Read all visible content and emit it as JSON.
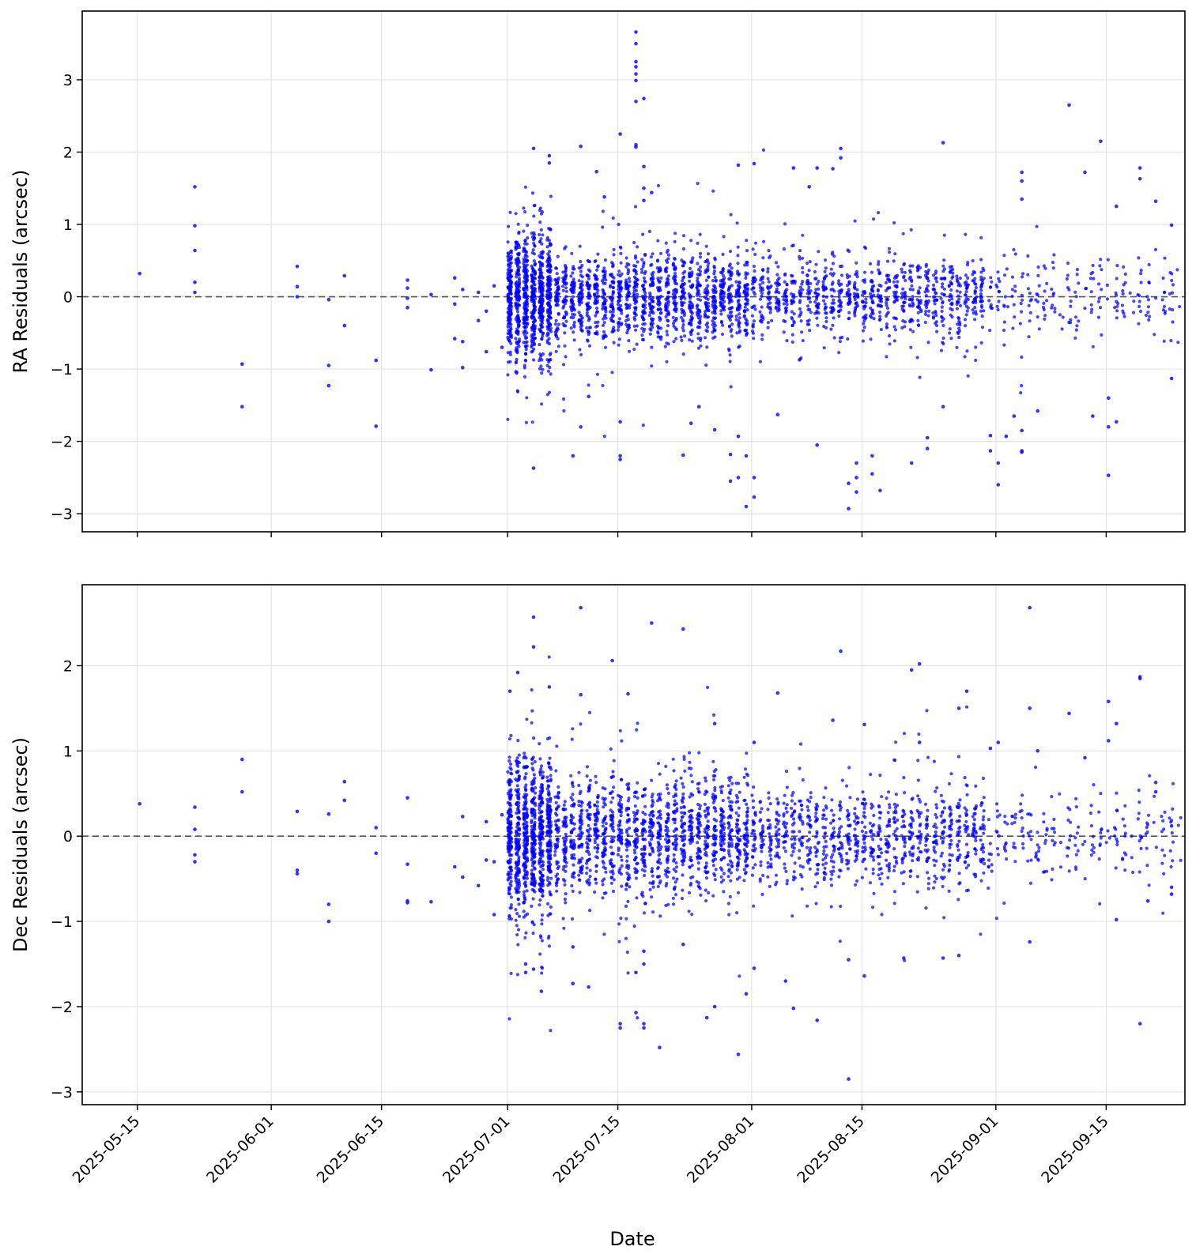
{
  "chart_data": [
    {
      "type": "scatter",
      "ylabel": "RA Residuals (arcsec)",
      "xlabel": "",
      "x_range": [
        "2025-05-08",
        "2025-09-25"
      ],
      "ylim": [
        -3.25,
        3.95
      ],
      "yticks": [
        -3,
        -2,
        -1,
        0,
        1,
        2,
        3
      ],
      "ytick_labels": [
        "−3",
        "−2",
        "−1",
        "0",
        "1",
        "2",
        "3"
      ],
      "xticks": [
        "2025-05-15",
        "2025-06-01",
        "2025-06-15",
        "2025-07-01",
        "2025-07-15",
        "2025-08-01",
        "2025-08-15",
        "2025-09-01",
        "2025-09-15"
      ],
      "xtick_labels_visible": false,
      "reference_line": 0,
      "grid": true,
      "marker_color": "#0000ff",
      "points": [
        [
          "2025-05-15",
          0.32
        ],
        [
          "2025-05-22",
          1.52
        ],
        [
          "2025-05-22",
          0.98
        ],
        [
          "2025-05-22",
          0.64
        ],
        [
          "2025-05-22",
          0.2
        ],
        [
          "2025-05-22",
          0.06
        ],
        [
          "2025-05-28",
          -0.93
        ],
        [
          "2025-05-28",
          -1.52
        ],
        [
          "2025-06-04",
          0.42
        ],
        [
          "2025-06-04",
          0.14
        ],
        [
          "2025-06-04",
          0.0
        ],
        [
          "2025-06-08",
          -0.95
        ],
        [
          "2025-06-08",
          -1.23
        ],
        [
          "2025-06-08",
          -0.04
        ],
        [
          "2025-06-10",
          0.29
        ],
        [
          "2025-06-10",
          -0.4
        ],
        [
          "2025-06-14",
          -0.88
        ],
        [
          "2025-06-14",
          -1.79
        ],
        [
          "2025-06-18",
          0.23
        ],
        [
          "2025-06-18",
          0.12
        ],
        [
          "2025-06-18",
          -0.02
        ],
        [
          "2025-06-18",
          -0.15
        ],
        [
          "2025-06-21",
          0.03
        ],
        [
          "2025-06-21",
          -1.01
        ],
        [
          "2025-06-24",
          0.26
        ],
        [
          "2025-06-24",
          -0.1
        ],
        [
          "2025-06-24",
          -0.58
        ],
        [
          "2025-06-25",
          -0.98
        ],
        [
          "2025-06-25",
          0.1
        ],
        [
          "2025-06-25",
          -0.62
        ],
        [
          "2025-06-27",
          0.06
        ],
        [
          "2025-06-27",
          -0.33
        ],
        [
          "2025-06-28",
          -0.2
        ],
        [
          "2025-06-28",
          -0.76
        ],
        [
          "2025-06-29",
          0.15
        ],
        [
          "2025-06-30",
          -0.7
        ],
        [
          "2025-07-04",
          -2.37
        ],
        [
          "2025-07-06",
          1.95
        ],
        [
          "2025-07-06",
          1.85
        ],
        [
          "2025-07-04",
          2.05
        ],
        [
          "2025-07-10",
          2.08
        ],
        [
          "2025-07-10",
          -1.8
        ],
        [
          "2025-07-09",
          -2.2
        ],
        [
          "2025-07-11",
          -1.38
        ],
        [
          "2025-07-12",
          1.73
        ],
        [
          "2025-07-13",
          1.38
        ],
        [
          "2025-07-15",
          2.25
        ],
        [
          "2025-07-15",
          -2.2
        ],
        [
          "2025-07-15",
          -2.25
        ],
        [
          "2025-07-15",
          -1.73
        ],
        [
          "2025-07-17",
          3.66
        ],
        [
          "2025-07-17",
          3.5
        ],
        [
          "2025-07-17",
          3.25
        ],
        [
          "2025-07-17",
          3.18
        ],
        [
          "2025-07-17",
          3.08
        ],
        [
          "2025-07-17",
          2.99
        ],
        [
          "2025-07-17",
          2.7
        ],
        [
          "2025-07-18",
          2.74
        ],
        [
          "2025-07-17",
          2.1
        ],
        [
          "2025-07-17",
          2.07
        ],
        [
          "2025-07-18",
          1.8
        ],
        [
          "2025-07-18",
          1.5
        ],
        [
          "2025-07-18",
          1.33
        ],
        [
          "2025-07-19",
          1.44
        ],
        [
          "2025-07-23",
          -2.19
        ],
        [
          "2025-07-24",
          -1.75
        ],
        [
          "2025-07-25",
          -1.52
        ],
        [
          "2025-07-27",
          -1.84
        ],
        [
          "2025-07-29",
          -2.18
        ],
        [
          "2025-07-29",
          -2.55
        ],
        [
          "2025-07-30",
          -1.93
        ],
        [
          "2025-07-30",
          -2.5
        ],
        [
          "2025-07-31",
          -2.9
        ],
        [
          "2025-08-01",
          -2.77
        ],
        [
          "2025-08-01",
          -2.5
        ],
        [
          "2025-07-31",
          -2.2
        ],
        [
          "2025-07-30",
          1.82
        ],
        [
          "2025-08-01",
          1.84
        ],
        [
          "2025-08-04",
          -1.63
        ],
        [
          "2025-08-06",
          1.78
        ],
        [
          "2025-08-08",
          1.52
        ],
        [
          "2025-08-09",
          1.78
        ],
        [
          "2025-08-09",
          -2.05
        ],
        [
          "2025-08-11",
          1.77
        ],
        [
          "2025-08-12",
          2.05
        ],
        [
          "2025-08-12",
          1.92
        ],
        [
          "2025-08-13",
          -2.93
        ],
        [
          "2025-08-13",
          -2.58
        ],
        [
          "2025-08-14",
          -2.5
        ],
        [
          "2025-08-14",
          -2.3
        ],
        [
          "2025-08-14",
          -2.7
        ],
        [
          "2025-08-16",
          -2.45
        ],
        [
          "2025-08-16",
          -2.2
        ],
        [
          "2025-08-17",
          -2.68
        ],
        [
          "2025-08-21",
          -2.3
        ],
        [
          "2025-08-23",
          -2.1
        ],
        [
          "2025-08-23",
          -1.95
        ],
        [
          "2025-08-25",
          2.13
        ],
        [
          "2025-08-25",
          -1.52
        ],
        [
          "2025-08-31",
          -1.92
        ],
        [
          "2025-08-31",
          -2.13
        ],
        [
          "2025-09-01",
          -2.6
        ],
        [
          "2025-09-01",
          -2.3
        ],
        [
          "2025-09-02",
          -1.93
        ],
        [
          "2025-09-03",
          -1.65
        ],
        [
          "2025-09-04",
          -2.13
        ],
        [
          "2025-09-04",
          -2.15
        ],
        [
          "2025-09-04",
          -1.85
        ],
        [
          "2025-09-04",
          1.72
        ],
        [
          "2025-09-04",
          1.6
        ],
        [
          "2025-09-04",
          1.35
        ],
        [
          "2025-09-06",
          -1.58
        ],
        [
          "2025-09-10",
          2.65
        ],
        [
          "2025-09-12",
          1.72
        ],
        [
          "2025-09-13",
          -1.65
        ],
        [
          "2025-09-14",
          2.15
        ],
        [
          "2025-09-15",
          -2.47
        ],
        [
          "2025-09-15",
          -1.8
        ],
        [
          "2025-09-15",
          -1.4
        ],
        [
          "2025-09-16",
          1.25
        ],
        [
          "2025-09-16",
          -1.73
        ],
        [
          "2025-09-19",
          1.78
        ],
        [
          "2025-09-19",
          1.63
        ],
        [
          "2025-09-21",
          1.32
        ],
        [
          "2025-09-23",
          0.99
        ],
        [
          "2025-09-23",
          -1.13
        ]
      ]
    },
    {
      "type": "scatter",
      "ylabel": "Dec Residuals (arcsec)",
      "xlabel": "Date",
      "x_range": [
        "2025-05-08",
        "2025-09-25"
      ],
      "ylim": [
        -3.15,
        2.95
      ],
      "yticks": [
        -3,
        -2,
        -1,
        0,
        1,
        2
      ],
      "ytick_labels": [
        "−3",
        "−2",
        "−1",
        "0",
        "1",
        "2"
      ],
      "xticks": [
        "2025-05-15",
        "2025-06-01",
        "2025-06-15",
        "2025-07-01",
        "2025-07-15",
        "2025-08-01",
        "2025-08-15",
        "2025-09-01",
        "2025-09-15"
      ],
      "xtick_labels": [
        "2025-05-15",
        "2025-06-01",
        "2025-06-15",
        "2025-07-01",
        "2025-07-15",
        "2025-08-01",
        "2025-08-15",
        "2025-09-01",
        "2025-09-15"
      ],
      "reference_line": 0,
      "grid": true,
      "marker_color": "#0000ff",
      "points": [
        [
          "2025-05-15",
          0.38
        ],
        [
          "2025-05-22",
          0.34
        ],
        [
          "2025-05-22",
          0.08
        ],
        [
          "2025-05-22",
          -0.22
        ],
        [
          "2025-05-22",
          -0.3
        ],
        [
          "2025-05-28",
          0.9
        ],
        [
          "2025-05-28",
          0.52
        ],
        [
          "2025-06-04",
          0.29
        ],
        [
          "2025-06-04",
          -0.4
        ],
        [
          "2025-06-04",
          -0.44
        ],
        [
          "2025-06-08",
          0.26
        ],
        [
          "2025-06-08",
          -0.8
        ],
        [
          "2025-06-08",
          -1.0
        ],
        [
          "2025-06-10",
          0.64
        ],
        [
          "2025-06-10",
          0.42
        ],
        [
          "2025-06-14",
          0.1
        ],
        [
          "2025-06-14",
          -0.2
        ],
        [
          "2025-06-18",
          0.45
        ],
        [
          "2025-06-18",
          -0.33
        ],
        [
          "2025-06-18",
          -0.76
        ],
        [
          "2025-06-18",
          -0.78
        ],
        [
          "2025-06-21",
          -0.77
        ],
        [
          "2025-06-24",
          -0.36
        ],
        [
          "2025-06-25",
          0.23
        ],
        [
          "2025-06-25",
          -0.48
        ],
        [
          "2025-06-27",
          -0.58
        ],
        [
          "2025-06-28",
          0.17
        ],
        [
          "2025-06-28",
          -0.28
        ],
        [
          "2025-06-29",
          -0.92
        ],
        [
          "2025-06-29",
          -0.3
        ],
        [
          "2025-06-30",
          0.25
        ],
        [
          "2025-07-04",
          2.57
        ],
        [
          "2025-07-04",
          2.22
        ],
        [
          "2025-07-02",
          1.92
        ],
        [
          "2025-07-01",
          1.7
        ],
        [
          "2025-07-06",
          1.75
        ],
        [
          "2025-07-03",
          -1.5
        ],
        [
          "2025-07-04",
          -1.56
        ],
        [
          "2025-07-05",
          -1.82
        ],
        [
          "2025-07-03",
          -1.6
        ],
        [
          "2025-07-10",
          2.68
        ],
        [
          "2025-07-10",
          1.66
        ],
        [
          "2025-07-09",
          -1.73
        ],
        [
          "2025-07-09",
          -1.3
        ],
        [
          "2025-07-11",
          -1.77
        ],
        [
          "2025-07-14",
          2.06
        ],
        [
          "2025-07-15",
          -2.2
        ],
        [
          "2025-07-15",
          -2.25
        ],
        [
          "2025-07-16",
          1.67
        ],
        [
          "2025-07-17",
          -2.07
        ],
        [
          "2025-07-18",
          -2.2
        ],
        [
          "2025-07-18",
          -2.25
        ],
        [
          "2025-07-19",
          2.5
        ],
        [
          "2025-07-20",
          -2.48
        ],
        [
          "2025-07-17",
          -1.6
        ],
        [
          "2025-07-18",
          -1.5
        ],
        [
          "2025-07-18",
          -1.35
        ],
        [
          "2025-07-23",
          2.43
        ],
        [
          "2025-07-23",
          -1.27
        ],
        [
          "2025-07-26",
          -2.13
        ],
        [
          "2025-07-27",
          -2.0
        ],
        [
          "2025-07-27",
          1.32
        ],
        [
          "2025-07-30",
          -2.56
        ],
        [
          "2025-07-31",
          -1.85
        ],
        [
          "2025-08-01",
          -1.55
        ],
        [
          "2025-08-01",
          1.1
        ],
        [
          "2025-08-04",
          1.68
        ],
        [
          "2025-08-05",
          -1.7
        ],
        [
          "2025-08-06",
          -2.02
        ],
        [
          "2025-08-09",
          -2.16
        ],
        [
          "2025-08-11",
          1.36
        ],
        [
          "2025-08-12",
          2.17
        ],
        [
          "2025-08-13",
          -2.85
        ],
        [
          "2025-08-13",
          -1.45
        ],
        [
          "2025-08-15",
          1.31
        ],
        [
          "2025-08-15",
          -1.64
        ],
        [
          "2025-08-21",
          1.95
        ],
        [
          "2025-08-22",
          2.02
        ],
        [
          "2025-08-22",
          1.1
        ],
        [
          "2025-08-20",
          -1.43
        ],
        [
          "2025-08-25",
          -1.43
        ],
        [
          "2025-08-27",
          -1.4
        ],
        [
          "2025-08-28",
          1.7
        ],
        [
          "2025-08-27",
          1.5
        ],
        [
          "2025-08-31",
          1.03
        ],
        [
          "2025-09-01",
          1.1
        ],
        [
          "2025-09-05",
          2.68
        ],
        [
          "2025-09-05",
          1.5
        ],
        [
          "2025-09-05",
          -1.24
        ],
        [
          "2025-09-06",
          1.0
        ],
        [
          "2025-09-10",
          1.44
        ],
        [
          "2025-09-12",
          0.92
        ],
        [
          "2025-09-15",
          1.58
        ],
        [
          "2025-09-15",
          1.12
        ],
        [
          "2025-09-16",
          1.32
        ],
        [
          "2025-09-16",
          -0.98
        ],
        [
          "2025-09-19",
          1.87
        ],
        [
          "2025-09-19",
          1.85
        ],
        [
          "2025-09-19",
          -2.2
        ],
        [
          "2025-09-20",
          -0.76
        ],
        [
          "2025-09-21",
          0.63
        ],
        [
          "2025-09-21",
          0.52
        ],
        [
          "2025-09-23",
          -0.6
        ],
        [
          "2025-09-23",
          -0.68
        ],
        [
          "2025-09-23",
          0.12
        ]
      ]
    }
  ]
}
